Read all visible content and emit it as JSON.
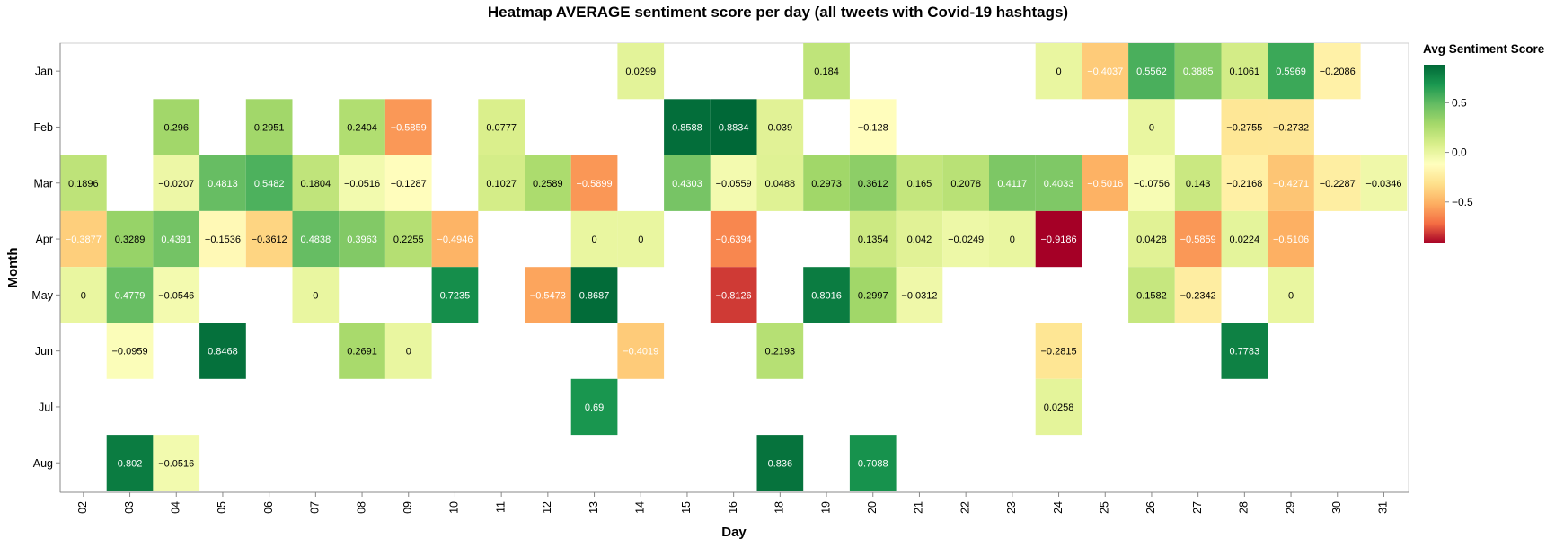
{
  "chart_data": {
    "type": "heatmap",
    "title": "Heatmap AVERAGE sentiment score per day (all tweets with Covid-19 hashtags)",
    "xlabel": "Day",
    "ylabel": "Month",
    "x_categories": [
      "02",
      "03",
      "04",
      "05",
      "06",
      "07",
      "08",
      "09",
      "10",
      "11",
      "12",
      "13",
      "14",
      "15",
      "16",
      "18",
      "19",
      "20",
      "21",
      "22",
      "23",
      "24",
      "25",
      "26",
      "27",
      "28",
      "29",
      "30",
      "31"
    ],
    "y_categories": [
      "Jan",
      "Feb",
      "Mar",
      "Apr",
      "May",
      "Jun",
      "Jul",
      "Aug"
    ],
    "color_scale": {
      "title": "Avg Sentiment Score",
      "domain": [
        -0.9186,
        0.8834
      ],
      "ticks": [
        0.5,
        0.0,
        -0.5
      ],
      "tick_labels": [
        "0.5",
        "0.0",
        "−0.5"
      ],
      "scheme": "red-yellow-green",
      "stops": [
        "#a50026",
        "#f46d43",
        "#fdae61",
        "#fee08b",
        "#ffffbf",
        "#d9ef8b",
        "#a6d96a",
        "#66bd63",
        "#1a9850",
        "#006837"
      ]
    },
    "cells": [
      {
        "month": "Jan",
        "day": "14",
        "value": 0.0299,
        "label": "0.0299"
      },
      {
        "month": "Jan",
        "day": "19",
        "value": 0.184,
        "label": "0.184"
      },
      {
        "month": "Jan",
        "day": "24",
        "value": 0,
        "label": "0"
      },
      {
        "month": "Jan",
        "day": "25",
        "value": -0.4037,
        "label": "−0.4037"
      },
      {
        "month": "Jan",
        "day": "26",
        "value": 0.5562,
        "label": "0.5562"
      },
      {
        "month": "Jan",
        "day": "27",
        "value": 0.3885,
        "label": "0.3885"
      },
      {
        "month": "Jan",
        "day": "28",
        "value": 0.1061,
        "label": "0.1061"
      },
      {
        "month": "Jan",
        "day": "29",
        "value": 0.5969,
        "label": "0.5969"
      },
      {
        "month": "Jan",
        "day": "30",
        "value": -0.2086,
        "label": "−0.2086"
      },
      {
        "month": "Feb",
        "day": "04",
        "value": 0.296,
        "label": "0.296"
      },
      {
        "month": "Feb",
        "day": "06",
        "value": 0.2951,
        "label": "0.2951"
      },
      {
        "month": "Feb",
        "day": "08",
        "value": 0.2404,
        "label": "0.2404"
      },
      {
        "month": "Feb",
        "day": "09",
        "value": -0.5859,
        "label": "−0.5859"
      },
      {
        "month": "Feb",
        "day": "11",
        "value": 0.0777,
        "label": "0.0777"
      },
      {
        "month": "Feb",
        "day": "15",
        "value": 0.8588,
        "label": "0.8588"
      },
      {
        "month": "Feb",
        "day": "16",
        "value": 0.8834,
        "label": "0.8834"
      },
      {
        "month": "Feb",
        "day": "18",
        "value": 0.039,
        "label": "0.039"
      },
      {
        "month": "Feb",
        "day": "20",
        "value": -0.128,
        "label": "−0.128"
      },
      {
        "month": "Feb",
        "day": "26",
        "value": 0,
        "label": "0"
      },
      {
        "month": "Feb",
        "day": "28",
        "value": -0.2755,
        "label": "−0.2755"
      },
      {
        "month": "Feb",
        "day": "29",
        "value": -0.2732,
        "label": "−0.2732"
      },
      {
        "month": "Mar",
        "day": "02",
        "value": 0.1896,
        "label": "0.1896"
      },
      {
        "month": "Mar",
        "day": "04",
        "value": -0.0207,
        "label": "−0.0207"
      },
      {
        "month": "Mar",
        "day": "05",
        "value": 0.4813,
        "label": "0.4813"
      },
      {
        "month": "Mar",
        "day": "06",
        "value": 0.5482,
        "label": "0.5482"
      },
      {
        "month": "Mar",
        "day": "07",
        "value": 0.1804,
        "label": "0.1804"
      },
      {
        "month": "Mar",
        "day": "08",
        "value": -0.0516,
        "label": "−0.0516"
      },
      {
        "month": "Mar",
        "day": "09",
        "value": -0.1287,
        "label": "−0.1287"
      },
      {
        "month": "Mar",
        "day": "11",
        "value": 0.1027,
        "label": "0.1027"
      },
      {
        "month": "Mar",
        "day": "12",
        "value": 0.2589,
        "label": "0.2589"
      },
      {
        "month": "Mar",
        "day": "13",
        "value": -0.5899,
        "label": "−0.5899"
      },
      {
        "month": "Mar",
        "day": "15",
        "value": 0.4303,
        "label": "0.4303"
      },
      {
        "month": "Mar",
        "day": "16",
        "value": -0.0559,
        "label": "−0.0559"
      },
      {
        "month": "Mar",
        "day": "18",
        "value": 0.0488,
        "label": "0.0488"
      },
      {
        "month": "Mar",
        "day": "19",
        "value": 0.2973,
        "label": "0.2973"
      },
      {
        "month": "Mar",
        "day": "20",
        "value": 0.3612,
        "label": "0.3612"
      },
      {
        "month": "Mar",
        "day": "21",
        "value": 0.165,
        "label": "0.165"
      },
      {
        "month": "Mar",
        "day": "22",
        "value": 0.2078,
        "label": "0.2078"
      },
      {
        "month": "Mar",
        "day": "23",
        "value": 0.4117,
        "label": "0.4117"
      },
      {
        "month": "Mar",
        "day": "24",
        "value": 0.4033,
        "label": "0.4033"
      },
      {
        "month": "Mar",
        "day": "25",
        "value": -0.5016,
        "label": "−0.5016"
      },
      {
        "month": "Mar",
        "day": "26",
        "value": -0.0756,
        "label": "−0.0756"
      },
      {
        "month": "Mar",
        "day": "27",
        "value": 0.143,
        "label": "0.143"
      },
      {
        "month": "Mar",
        "day": "28",
        "value": -0.2168,
        "label": "−0.2168"
      },
      {
        "month": "Mar",
        "day": "29",
        "value": -0.4271,
        "label": "−0.4271"
      },
      {
        "month": "Mar",
        "day": "30",
        "value": -0.2287,
        "label": "−0.2287"
      },
      {
        "month": "Mar",
        "day": "31",
        "value": -0.0346,
        "label": "−0.0346"
      },
      {
        "month": "Apr",
        "day": "02",
        "value": -0.3877,
        "label": "−0.3877"
      },
      {
        "month": "Apr",
        "day": "03",
        "value": 0.3289,
        "label": "0.3289"
      },
      {
        "month": "Apr",
        "day": "04",
        "value": 0.4391,
        "label": "0.4391"
      },
      {
        "month": "Apr",
        "day": "05",
        "value": -0.1536,
        "label": "−0.1536"
      },
      {
        "month": "Apr",
        "day": "06",
        "value": -0.3612,
        "label": "−0.3612"
      },
      {
        "month": "Apr",
        "day": "07",
        "value": 0.4838,
        "label": "0.4838"
      },
      {
        "month": "Apr",
        "day": "08",
        "value": 0.3963,
        "label": "0.3963"
      },
      {
        "month": "Apr",
        "day": "09",
        "value": 0.2255,
        "label": "0.2255"
      },
      {
        "month": "Apr",
        "day": "10",
        "value": -0.4946,
        "label": "−0.4946"
      },
      {
        "month": "Apr",
        "day": "13",
        "value": 0,
        "label": "0"
      },
      {
        "month": "Apr",
        "day": "14",
        "value": 0,
        "label": "0"
      },
      {
        "month": "Apr",
        "day": "16",
        "value": -0.6394,
        "label": "−0.6394"
      },
      {
        "month": "Apr",
        "day": "20",
        "value": 0.1354,
        "label": "0.1354"
      },
      {
        "month": "Apr",
        "day": "21",
        "value": 0.042,
        "label": "0.042"
      },
      {
        "month": "Apr",
        "day": "22",
        "value": -0.0249,
        "label": "−0.0249"
      },
      {
        "month": "Apr",
        "day": "23",
        "value": 0,
        "label": "0"
      },
      {
        "month": "Apr",
        "day": "24",
        "value": -0.9186,
        "label": "−0.9186"
      },
      {
        "month": "Apr",
        "day": "26",
        "value": 0.0428,
        "label": "0.0428"
      },
      {
        "month": "Apr",
        "day": "27",
        "value": -0.5859,
        "label": "−0.5859"
      },
      {
        "month": "Apr",
        "day": "28",
        "value": 0.0224,
        "label": "0.0224"
      },
      {
        "month": "Apr",
        "day": "29",
        "value": -0.5106,
        "label": "−0.5106"
      },
      {
        "month": "May",
        "day": "02",
        "value": 0,
        "label": "0"
      },
      {
        "month": "May",
        "day": "03",
        "value": 0.4779,
        "label": "0.4779"
      },
      {
        "month": "May",
        "day": "04",
        "value": -0.0546,
        "label": "−0.0546"
      },
      {
        "month": "May",
        "day": "07",
        "value": 0,
        "label": "0"
      },
      {
        "month": "May",
        "day": "10",
        "value": 0.7235,
        "label": "0.7235"
      },
      {
        "month": "May",
        "day": "12",
        "value": -0.5473,
        "label": "−0.5473"
      },
      {
        "month": "May",
        "day": "13",
        "value": 0.8687,
        "label": "0.8687"
      },
      {
        "month": "May",
        "day": "16",
        "value": -0.8126,
        "label": "−0.8126"
      },
      {
        "month": "May",
        "day": "19",
        "value": 0.8016,
        "label": "0.8016"
      },
      {
        "month": "May",
        "day": "20",
        "value": 0.2997,
        "label": "0.2997"
      },
      {
        "month": "May",
        "day": "21",
        "value": -0.0312,
        "label": "−0.0312"
      },
      {
        "month": "May",
        "day": "26",
        "value": 0.1582,
        "label": "0.1582"
      },
      {
        "month": "May",
        "day": "27",
        "value": -0.2342,
        "label": "−0.2342"
      },
      {
        "month": "May",
        "day": "29",
        "value": 0,
        "label": "0"
      },
      {
        "month": "Jun",
        "day": "03",
        "value": -0.0959,
        "label": "−0.0959"
      },
      {
        "month": "Jun",
        "day": "05",
        "value": 0.8468,
        "label": "0.8468"
      },
      {
        "month": "Jun",
        "day": "08",
        "value": 0.2691,
        "label": "0.2691"
      },
      {
        "month": "Jun",
        "day": "09",
        "value": 0,
        "label": "0"
      },
      {
        "month": "Jun",
        "day": "14",
        "value": -0.4019,
        "label": "−0.4019"
      },
      {
        "month": "Jun",
        "day": "18",
        "value": 0.2193,
        "label": "0.2193"
      },
      {
        "month": "Jun",
        "day": "24",
        "value": -0.2815,
        "label": "−0.2815"
      },
      {
        "month": "Jun",
        "day": "28",
        "value": 0.7783,
        "label": "0.7783"
      },
      {
        "month": "Jul",
        "day": "13",
        "value": 0.69,
        "label": "0.69"
      },
      {
        "month": "Jul",
        "day": "24",
        "value": 0.0258,
        "label": "0.0258"
      },
      {
        "month": "Aug",
        "day": "03",
        "value": 0.802,
        "label": "0.802"
      },
      {
        "month": "Aug",
        "day": "04",
        "value": -0.0516,
        "label": "−0.0516"
      },
      {
        "month": "Aug",
        "day": "18",
        "value": 0.836,
        "label": "0.836"
      },
      {
        "month": "Aug",
        "day": "20",
        "value": 0.7088,
        "label": "0.7088"
      }
    ]
  }
}
